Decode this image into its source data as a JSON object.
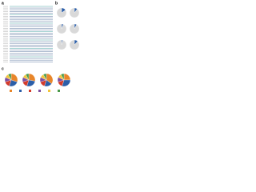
{
  "panels": [
    "a",
    "b",
    "c"
  ],
  "chart_data": [
    {
      "type": "pie",
      "values": [
        15,
        85
      ],
      "colors": [
        "#2b5ea8",
        "#d9d9d9"
      ]
    },
    {
      "type": "pie",
      "values": [
        10,
        90
      ],
      "colors": [
        "#2b5ea8",
        "#d9d9d9"
      ]
    },
    {
      "type": "pie",
      "values": [
        6,
        94
      ],
      "colors": [
        "#2b5ea8",
        "#d9d9d9"
      ]
    },
    {
      "type": "pie",
      "values": [
        8,
        92
      ],
      "colors": [
        "#2b5ea8",
        "#d9d9d9"
      ]
    },
    {
      "type": "pie",
      "values": [
        4,
        96
      ],
      "colors": [
        "#2b5ea8",
        "#d9d9d9"
      ]
    },
    {
      "type": "pie",
      "values": [
        12,
        88
      ],
      "colors": [
        "#2b5ea8",
        "#d9d9d9"
      ]
    },
    {
      "type": "pie",
      "values": [
        30,
        25,
        15,
        12,
        10,
        8
      ],
      "colors": [
        "#e8862a",
        "#2b5ea8",
        "#d33b2c",
        "#7b4fa0",
        "#f2c53d",
        "#4a9a4a"
      ]
    },
    {
      "type": "pie",
      "values": [
        28,
        27,
        15,
        12,
        10,
        8
      ],
      "colors": [
        "#e8862a",
        "#2b5ea8",
        "#d33b2c",
        "#7b4fa0",
        "#f2c53d",
        "#4a9a4a"
      ]
    },
    {
      "type": "pie",
      "values": [
        35,
        20,
        15,
        12,
        10,
        8
      ],
      "colors": [
        "#e8862a",
        "#2b5ea8",
        "#d33b2c",
        "#7b4fa0",
        "#f2c53d",
        "#4a9a4a"
      ]
    },
    {
      "type": "pie",
      "values": [
        25,
        30,
        15,
        12,
        10,
        8
      ],
      "colors": [
        "#e8862a",
        "#2b5ea8",
        "#d33b2c",
        "#7b4fa0",
        "#f2c53d",
        "#4a9a4a"
      ]
    }
  ]
}
